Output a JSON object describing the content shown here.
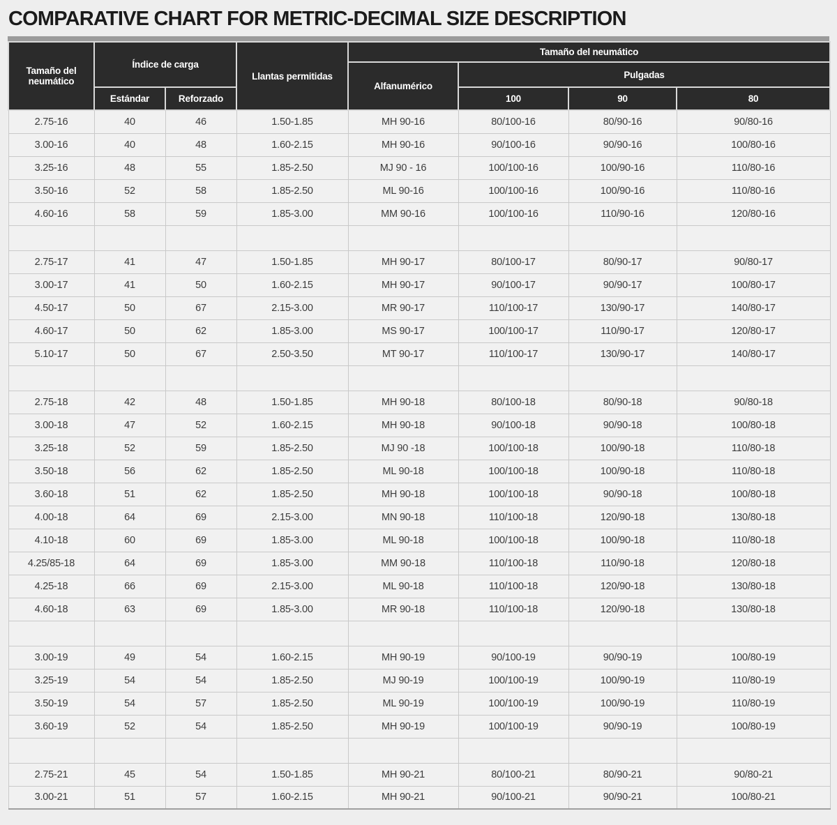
{
  "title": "COMPARATIVE CHART FOR METRIC-DECIMAL SIZE DESCRIPTION",
  "table": {
    "header": {
      "tire_size_metric": "Tamaño del neumático",
      "load_index": "Índice de carga",
      "standard": "Estándar",
      "reinforced": "Reforzado",
      "rims_allowed": "Llantas permitidas",
      "tire_size_group": "Tamaño del neumático",
      "alphanumeric": "Alfanumérico",
      "inches": "Pulgadas",
      "inch_100": "100",
      "inch_90": "90",
      "inch_80": "80"
    },
    "rows": [
      [
        "2.75-16",
        "40",
        "46",
        "1.50-1.85",
        "MH 90-16",
        "80/100-16",
        "80/90-16",
        "90/80-16"
      ],
      [
        "3.00-16",
        "40",
        "48",
        "1.60-2.15",
        "MH 90-16",
        "90/100-16",
        "90/90-16",
        "100/80-16"
      ],
      [
        "3.25-16",
        "48",
        "55",
        "1.85-2.50",
        "MJ 90 - 16",
        "100/100-16",
        "100/90-16",
        "110/80-16"
      ],
      [
        "3.50-16",
        "52",
        "58",
        "1.85-2.50",
        "ML 90-16",
        "100/100-16",
        "100/90-16",
        "110/80-16"
      ],
      [
        "4.60-16",
        "58",
        "59",
        "1.85-3.00",
        "MM 90-16",
        "100/100-16",
        "110/90-16",
        "120/80-16"
      ],
      null,
      [
        "2.75-17",
        "41",
        "47",
        "1.50-1.85",
        "MH 90-17",
        "80/100-17",
        "80/90-17",
        "90/80-17"
      ],
      [
        "3.00-17",
        "41",
        "50",
        "1.60-2.15",
        "MH 90-17",
        "90/100-17",
        "90/90-17",
        "100/80-17"
      ],
      [
        "4.50-17",
        "50",
        "67",
        "2.15-3.00",
        "MR 90-17",
        "110/100-17",
        "130/90-17",
        "140/80-17"
      ],
      [
        "4.60-17",
        "50",
        "62",
        "1.85-3.00",
        "MS 90-17",
        "100/100-17",
        "110/90-17",
        "120/80-17"
      ],
      [
        "5.10-17",
        "50",
        "67",
        "2.50-3.50",
        "MT 90-17",
        "110/100-17",
        "130/90-17",
        "140/80-17"
      ],
      null,
      [
        "2.75-18",
        "42",
        "48",
        "1.50-1.85",
        "MH 90-18",
        "80/100-18",
        "80/90-18",
        "90/80-18"
      ],
      [
        "3.00-18",
        "47",
        "52",
        "1.60-2.15",
        "MH 90-18",
        "90/100-18",
        "90/90-18",
        "100/80-18"
      ],
      [
        "3.25-18",
        "52",
        "59",
        "1.85-2.50",
        "MJ 90 -18",
        "100/100-18",
        "100/90-18",
        "110/80-18"
      ],
      [
        "3.50-18",
        "56",
        "62",
        "1.85-2.50",
        "ML 90-18",
        "100/100-18",
        "100/90-18",
        "110/80-18"
      ],
      [
        "3.60-18",
        "51",
        "62",
        "1.85-2.50",
        "MH 90-18",
        "100/100-18",
        "90/90-18",
        "100/80-18"
      ],
      [
        "4.00-18",
        "64",
        "69",
        "2.15-3.00",
        "MN 90-18",
        "110/100-18",
        "120/90-18",
        "130/80-18"
      ],
      [
        "4.10-18",
        "60",
        "69",
        "1.85-3.00",
        "ML 90-18",
        "100/100-18",
        "100/90-18",
        "110/80-18"
      ],
      [
        "4.25/85-18",
        "64",
        "69",
        "1.85-3.00",
        "MM 90-18",
        "110/100-18",
        "110/90-18",
        "120/80-18"
      ],
      [
        "4.25-18",
        "66",
        "69",
        "2.15-3.00",
        "ML 90-18",
        "110/100-18",
        "120/90-18",
        "130/80-18"
      ],
      [
        "4.60-18",
        "63",
        "69",
        "1.85-3.00",
        "MR 90-18",
        "110/100-18",
        "120/90-18",
        "130/80-18"
      ],
      null,
      [
        "3.00-19",
        "49",
        "54",
        "1.60-2.15",
        "MH 90-19",
        "90/100-19",
        "90/90-19",
        "100/80-19"
      ],
      [
        "3.25-19",
        "54",
        "54",
        "1.85-2.50",
        "MJ 90-19",
        "100/100-19",
        "100/90-19",
        "110/80-19"
      ],
      [
        "3.50-19",
        "54",
        "57",
        "1.85-2.50",
        "ML 90-19",
        "100/100-19",
        "100/90-19",
        "110/80-19"
      ],
      [
        "3.60-19",
        "52",
        "54",
        "1.85-2.50",
        "MH 90-19",
        "100/100-19",
        "90/90-19",
        "100/80-19"
      ],
      null,
      [
        "2.75-21",
        "45",
        "54",
        "1.50-1.85",
        "MH 90-21",
        "80/100-21",
        "80/90-21",
        "90/80-21"
      ],
      [
        "3.00-21",
        "51",
        "57",
        "1.60-2.15",
        "MH 90-21",
        "90/100-21",
        "90/90-21",
        "100/80-21"
      ]
    ]
  },
  "colors": {
    "header_bg": "#2b2b2b",
    "header_text": "#ffffff",
    "accent_bar": "#9b9b9b",
    "page_bg": "#eeeeee",
    "cell_bg": "#f1f1f1",
    "grid_line": "#c9c9c9",
    "table_bottom_line": "#9f9f9f",
    "body_text": "#3c3c3c",
    "title_text": "#1b1b1b"
  }
}
